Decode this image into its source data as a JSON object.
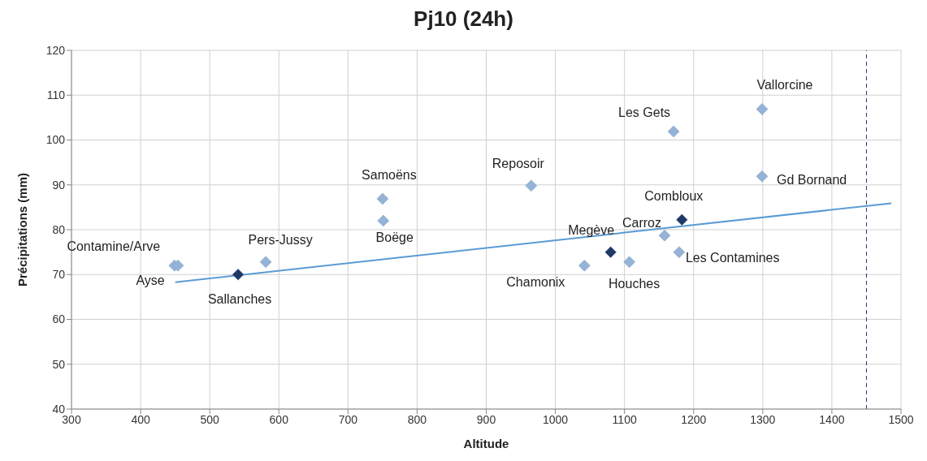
{
  "chart_data": {
    "type": "scatter",
    "title": "Pj10 (24h)",
    "xlabel": "Altitude",
    "ylabel": "Précipitations (mm)",
    "xlim": [
      300,
      1500
    ],
    "xticks": [
      300,
      400,
      500,
      600,
      700,
      800,
      900,
      1000,
      1100,
      1200,
      1300,
      1400,
      1500
    ],
    "ylim": [
      40,
      120
    ],
    "yticks": [
      40,
      50,
      60,
      70,
      80,
      90,
      100,
      110,
      120
    ],
    "grid": true,
    "legend": false,
    "marker": "diamond",
    "series": [
      {
        "color": "#95b3d7",
        "x": [
          449,
          454,
          581,
          750,
          751,
          965,
          1042,
          1107,
          1158,
          1179,
          1171,
          1299,
          1299
        ],
        "values": [
          72,
          72,
          72.8,
          86.9,
          82,
          89.8,
          72,
          72.8,
          78.7,
          75,
          101.9,
          106.9,
          91.9
        ]
      },
      {
        "color": "#1f3864",
        "x": [
          541,
          1080,
          1183
        ],
        "values": [
          70,
          75,
          82.2
        ]
      },
      {
        "type": "line",
        "color": "#5b9bd5",
        "x": [
          450,
          1486
        ],
        "values": [
          68.3,
          85.9
        ],
        "marker": "none",
        "line_style": "solid"
      }
    ],
    "ref_lines": [
      {
        "axis": "x",
        "value": 1450,
        "color": "#1f3864",
        "line_style": "dashed"
      }
    ],
    "annotations": [
      {
        "text": "Contamine/Arve",
        "x": 449,
        "y": 72
      },
      {
        "text": "Ayse",
        "x": 454,
        "y": 72
      },
      {
        "text": "Sallanches",
        "x": 541,
        "y": 70
      },
      {
        "text": "Pers-Jussy",
        "x": 581,
        "y": 72.8
      },
      {
        "text": "Samoëns",
        "x": 750,
        "y": 86.9
      },
      {
        "text": "Boëge",
        "x": 751,
        "y": 82
      },
      {
        "text": "Reposoir",
        "x": 965,
        "y": 89.8
      },
      {
        "text": "Chamonix",
        "x": 1042,
        "y": 72
      },
      {
        "text": "Megève",
        "x": 1080,
        "y": 75
      },
      {
        "text": "Houches",
        "x": 1107,
        "y": 72.8
      },
      {
        "text": "Carroz",
        "x": 1158,
        "y": 78.7
      },
      {
        "text": "Combloux",
        "x": 1183,
        "y": 82.2
      },
      {
        "text": "Les Contamines",
        "x": 1179,
        "y": 75
      },
      {
        "text": "Les Gets",
        "x": 1171,
        "y": 101.9
      },
      {
        "text": "Vallorcine",
        "x": 1299,
        "y": 106.9
      },
      {
        "text": "Gd Bornand",
        "x": 1299,
        "y": 91.9
      }
    ]
  }
}
